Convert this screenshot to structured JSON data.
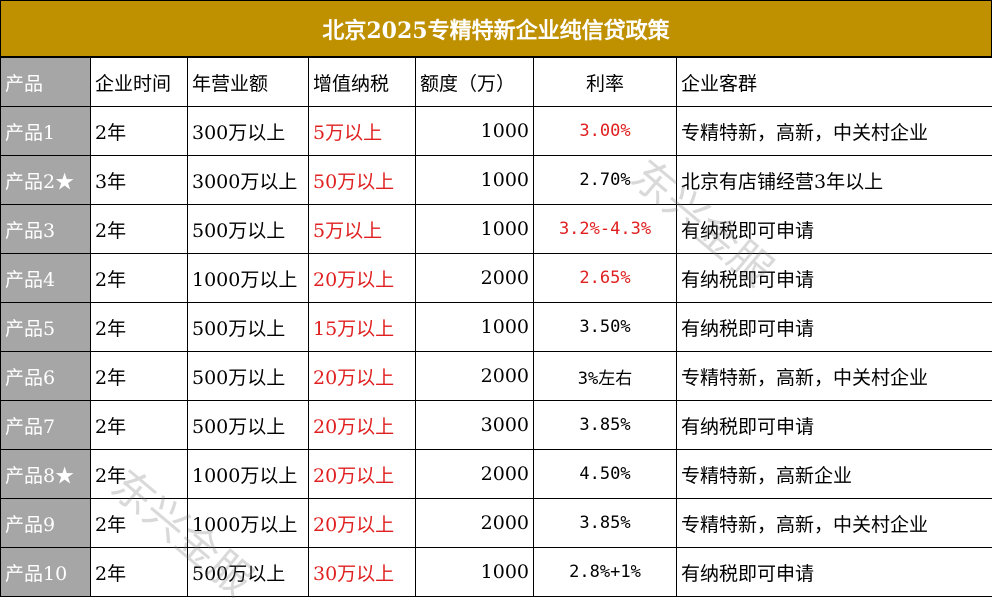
{
  "title": "北京2025专精特新企业纯信贷政策",
  "headers": [
    "产品",
    "企业时间",
    "年营业额",
    "增值纳税",
    "额度（万）",
    "利率",
    "企业客群"
  ],
  "rows": [
    {
      "product": "产品1",
      "years": "2年",
      "revenue": "300万以上",
      "tax": "5万以上",
      "quota": "1000",
      "rate": "3.00%",
      "rate_red": true,
      "clients": "专精特新，高新，中关村企业"
    },
    {
      "product": "产品2★",
      "years": "3年",
      "revenue": "3000万以上",
      "tax": "50万以上",
      "quota": "1000",
      "rate": "2.70%",
      "rate_red": false,
      "clients": "北京有店铺经营3年以上"
    },
    {
      "product": "产品3",
      "years": "2年",
      "revenue": "500万以上",
      "tax": "5万以上",
      "quota": "1000",
      "rate": "3.2%-4.3%",
      "rate_red": true,
      "clients": "有纳税即可申请"
    },
    {
      "product": "产品4",
      "years": "2年",
      "revenue": "1000万以上",
      "tax": "20万以上",
      "quota": "2000",
      "rate": "2.65%",
      "rate_red": true,
      "clients": "有纳税即可申请"
    },
    {
      "product": "产品5",
      "years": "2年",
      "revenue": "500万以上",
      "tax": "15万以上",
      "quota": "1000",
      "rate": "3.50%",
      "rate_red": false,
      "clients": "有纳税即可申请"
    },
    {
      "product": "产品6",
      "years": "2年",
      "revenue": "500万以上",
      "tax": "20万以上",
      "quota": "2000",
      "rate": "3%左右",
      "rate_red": false,
      "clients": "专精特新，高新，中关村企业"
    },
    {
      "product": "产品7",
      "years": "2年",
      "revenue": "500万以上",
      "tax": "20万以上",
      "quota": "3000",
      "rate": "3.85%",
      "rate_red": false,
      "clients": "有纳税即可申请"
    },
    {
      "product": "产品8★",
      "years": "2年",
      "revenue": "1000万以上",
      "tax": "20万以上",
      "quota": "2000",
      "rate": "4.50%",
      "rate_red": false,
      "clients": "专精特新，高新企业"
    },
    {
      "product": "产品9",
      "years": "2年",
      "revenue": "1000万以上",
      "tax": "20万以上",
      "quota": "2000",
      "rate": "3.85%",
      "rate_red": false,
      "clients": "专精特新，高新，中关村企业"
    },
    {
      "product": "产品10",
      "years": "2年",
      "revenue": "500万以上",
      "tax": "30万以上",
      "quota": "1000",
      "rate": "2.8%+1%",
      "rate_red": false,
      "clients": "有纳税即可申请"
    }
  ],
  "watermark": "东兴金服",
  "colors": {
    "title_bg": "#bf9000",
    "product_bg": "#a6a6a6",
    "red": "#e02020"
  }
}
